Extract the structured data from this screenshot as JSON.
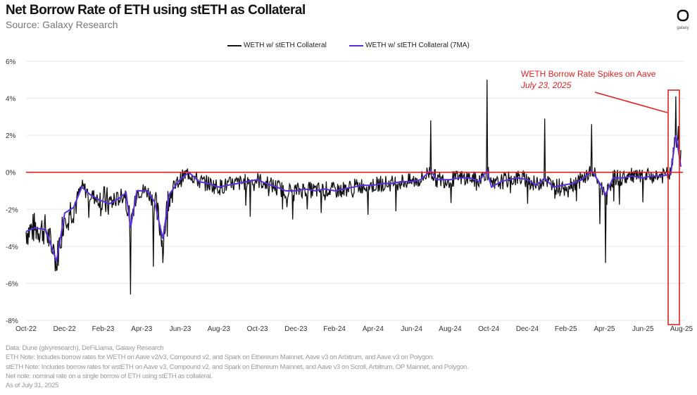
{
  "header": {
    "title": "Net Borrow Rate of ETH using stETH as Collateral",
    "subtitle": "Source: Galaxy Research",
    "logo_text": "galaxy"
  },
  "notes": [
    "Data: Dune (glxyresearch), DeFiLlama, Galaxy Research",
    "ETH Note: Includes borrow rates for WETH on Aave v2/v3, Compound v2, and Spark on Ethereum Mainnet, Aave v3 on Arbitrum, and Aave v3 on Polygon.",
    "stETH Note: Includes  borrow rates for wstETH on Aave v3, Compound v2, and  Spark on Ethereum Mainnet, and Aave v3 on Scroll, Arbitrum, OP Mainnet, and Polygon.",
    "Net note: nominal rate on a single borrow of ETH using stETH as collateral.",
    "As of July 31, 2025"
  ],
  "annotation": {
    "line1": "WETH Borrow Rate Spikes on Aave",
    "line2": "July 23, 2025",
    "color": "#dd2222"
  },
  "chart_data": {
    "type": "line",
    "title": "Net Borrow Rate of ETH using stETH as Collateral",
    "xlabel": "",
    "ylabel": "",
    "ylim": [
      -8,
      6
    ],
    "yticks": [
      "-8%",
      "-6%",
      "-4%",
      "-2%",
      "0%",
      "2%",
      "4%",
      "6%"
    ],
    "xlim": [
      "2022-10-01",
      "2025-08-01"
    ],
    "xticks": [
      "Oct-22",
      "Dec-22",
      "Feb-23",
      "Apr-23",
      "Jun-23",
      "Aug-23",
      "Oct-23",
      "Dec-23",
      "Feb-24",
      "Apr-24",
      "Jun-24",
      "Aug-24",
      "Oct-24",
      "Dec-24",
      "Feb-25",
      "Apr-25",
      "Jun-25",
      "Aug-25"
    ],
    "grid": true,
    "legend": "top-center",
    "series": [
      {
        "name": "WETH w/ stETH Collateral",
        "color": "#111111",
        "spikes": [
          [
            "2022-11-18",
            -5.3
          ],
          [
            "2023-03-15",
            -6.6
          ],
          [
            "2023-04-20",
            -5.1
          ],
          [
            "2023-05-05",
            -4.9
          ],
          [
            "2023-09-20",
            -2.4
          ],
          [
            "2024-01-10",
            -2.2
          ],
          [
            "2024-07-01",
            2.8
          ],
          [
            "2024-09-28",
            5.0
          ],
          [
            "2024-12-28",
            2.9
          ],
          [
            "2025-03-12",
            2.6
          ],
          [
            "2025-04-03",
            -4.9
          ],
          [
            "2025-03-25",
            -2.8
          ],
          [
            "2025-07-23",
            4.1
          ],
          [
            "2025-07-27",
            2.5
          ],
          [
            "2025-07-31",
            1.2
          ]
        ]
      },
      {
        "name": "WETH w/ stETH Collateral (7MA)",
        "color": "#5b2ee0",
        "points": [
          [
            "2022-10-01",
            -3.2
          ],
          [
            "2022-10-15",
            -3.0
          ],
          [
            "2022-11-01",
            -3.1
          ],
          [
            "2022-11-18",
            -4.8
          ],
          [
            "2022-12-01",
            -2.2
          ],
          [
            "2022-12-15",
            -1.9
          ],
          [
            "2022-12-28",
            -0.8
          ],
          [
            "2023-01-10",
            -1.2
          ],
          [
            "2023-01-25",
            -1.5
          ],
          [
            "2023-02-10",
            -1.7
          ],
          [
            "2023-02-25",
            -1.4
          ],
          [
            "2023-03-08",
            -1.1
          ],
          [
            "2023-03-15",
            -3.0
          ],
          [
            "2023-03-25",
            -1.0
          ],
          [
            "2023-04-10",
            -1.0
          ],
          [
            "2023-04-22",
            -1.6
          ],
          [
            "2023-05-05",
            -3.6
          ],
          [
            "2023-05-15",
            -1.2
          ],
          [
            "2023-06-01",
            -0.4
          ],
          [
            "2023-06-15",
            0.0
          ],
          [
            "2023-07-01",
            -0.5
          ],
          [
            "2023-07-15",
            -0.6
          ],
          [
            "2023-08-01",
            -0.8
          ],
          [
            "2023-08-15",
            -0.7
          ],
          [
            "2023-09-01",
            -0.6
          ],
          [
            "2023-09-15",
            -0.5
          ],
          [
            "2023-10-01",
            -0.4
          ],
          [
            "2023-10-15",
            -0.6
          ],
          [
            "2023-11-01",
            -0.8
          ],
          [
            "2023-11-15",
            -1.0
          ],
          [
            "2023-12-01",
            -1.0
          ],
          [
            "2023-12-15",
            -0.9
          ],
          [
            "2024-01-01",
            -1.0
          ],
          [
            "2024-01-15",
            -0.9
          ],
          [
            "2024-02-01",
            -1.0
          ],
          [
            "2024-02-15",
            -0.9
          ],
          [
            "2024-03-01",
            -0.8
          ],
          [
            "2024-03-15",
            -0.7
          ],
          [
            "2024-04-01",
            -0.7
          ],
          [
            "2024-04-15",
            -0.6
          ],
          [
            "2024-05-01",
            -0.6
          ],
          [
            "2024-05-15",
            -0.5
          ],
          [
            "2024-06-01",
            -0.5
          ],
          [
            "2024-06-15",
            -0.4
          ],
          [
            "2024-07-01",
            0.1
          ],
          [
            "2024-07-10",
            -0.4
          ],
          [
            "2024-08-01",
            -0.4
          ],
          [
            "2024-08-15",
            -0.3
          ],
          [
            "2024-09-01",
            -0.3
          ],
          [
            "2024-09-15",
            -0.5
          ],
          [
            "2024-09-28",
            0.1
          ],
          [
            "2024-10-05",
            -0.8
          ],
          [
            "2024-10-20",
            -0.5
          ],
          [
            "2024-11-01",
            -0.4
          ],
          [
            "2024-11-15",
            -0.3
          ],
          [
            "2024-12-01",
            -0.4
          ],
          [
            "2024-12-15",
            -0.7
          ],
          [
            "2024-12-28",
            -0.3
          ],
          [
            "2025-01-10",
            -0.8
          ],
          [
            "2025-01-25",
            -0.7
          ],
          [
            "2025-02-10",
            -0.6
          ],
          [
            "2025-02-25",
            -0.4
          ],
          [
            "2025-03-12",
            0.1
          ],
          [
            "2025-03-25",
            -0.6
          ],
          [
            "2025-04-03",
            -1.2
          ],
          [
            "2025-04-15",
            -0.3
          ],
          [
            "2025-05-01",
            -0.3
          ],
          [
            "2025-05-15",
            -0.2
          ],
          [
            "2025-06-01",
            -0.3
          ],
          [
            "2025-06-15",
            -0.2
          ],
          [
            "2025-07-01",
            -0.2
          ],
          [
            "2025-07-15",
            -0.1
          ],
          [
            "2025-07-23",
            2.0
          ],
          [
            "2025-07-27",
            1.2
          ],
          [
            "2025-07-31",
            0.3
          ]
        ]
      }
    ]
  }
}
